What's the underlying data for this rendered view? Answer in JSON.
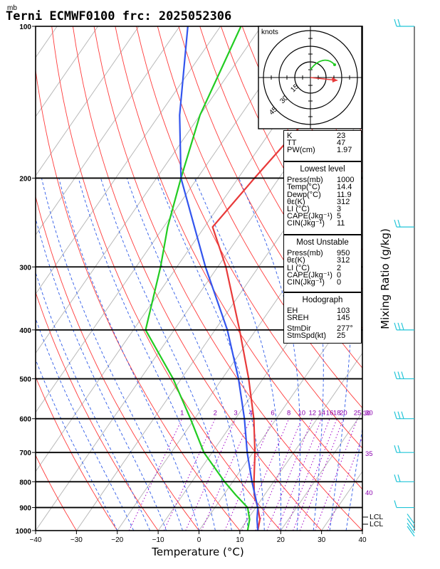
{
  "header": {
    "unit_mb": "mb",
    "title": "Terni ECMWF0100  frc: 2025052306"
  },
  "axes": {
    "xlabel": "Temperature (°C)",
    "right_label": "Mixing Ratio (g/kg)",
    "hodograph_units": "knots"
  },
  "hodograph_ring_labels": [
    "15",
    "30",
    "45"
  ],
  "lcl_labels": [
    "LCL",
    "LCL"
  ],
  "indices": [
    {
      "k": "K",
      "v": "23"
    },
    {
      "k": "TT",
      "v": "47"
    },
    {
      "k": "PW(cm)",
      "v": "1.97"
    }
  ],
  "lowest_level": {
    "title": "Lowest level",
    "rows": [
      {
        "k": "Press(mb)",
        "v": "1000"
      },
      {
        "k": "Temp(°C)",
        "v": "14.4"
      },
      {
        "k": "Dewp(°C)",
        "v": "11.9"
      },
      {
        "k": "θε(K)",
        "v": "312"
      },
      {
        "k": "LI (°C)",
        "v": "3"
      },
      {
        "k": "CAPE(Jkg⁻¹)",
        "v": "5"
      },
      {
        "k": "CIN(Jkg⁻¹)",
        "v": "11"
      }
    ]
  },
  "most_unstable": {
    "title": "Most Unstable",
    "rows": [
      {
        "k": "Press(mb)",
        "v": "950"
      },
      {
        "k": "θε(K)",
        "v": "312"
      },
      {
        "k": "LI (°C)",
        "v": "2"
      },
      {
        "k": "CAPE(Jkg⁻¹)",
        "v": "0"
      },
      {
        "k": "CIN(Jkg⁻¹)",
        "v": "0"
      }
    ]
  },
  "hodograph_box": {
    "title": "Hodograph",
    "rows": [
      {
        "k": "EH",
        "v": "103"
      },
      {
        "k": "SREH",
        "v": "145"
      },
      {
        "k": "StmDir",
        "v": "277°"
      },
      {
        "k": "StmSpd(kt)",
        "v": "25"
      }
    ]
  },
  "chart_data": {
    "type": "line",
    "title": "Terni ECMWF0100  frc: 2025052306",
    "xlabel": "Temperature (°C)",
    "ylabel": "mb",
    "y2label": "Mixing Ratio (g/kg)",
    "y_scale": "log",
    "xlim": [
      -40,
      40
    ],
    "ylim": [
      1000,
      100
    ],
    "x_ticks": [
      -40,
      -30,
      -20,
      -10,
      0,
      10,
      20,
      30,
      40
    ],
    "y_ticks": [
      1000,
      900,
      800,
      700,
      600,
      500,
      400,
      300,
      200,
      100
    ],
    "mixing_ratio_labels": [
      "1",
      "2",
      "3",
      "4",
      "6",
      "8",
      "10",
      "12",
      "14",
      "16",
      "18",
      "20",
      "25",
      "30"
    ],
    "dry_adiabat_labels": [
      "30",
      "35",
      "40"
    ],
    "colors": {
      "temperature": "#e83a3a",
      "dewpoint": "#22cc22",
      "parcel": "#3355ee",
      "wind": "#22c5d8"
    },
    "series": [
      {
        "name": "Temperature",
        "p": [
          1000,
          950,
          900,
          850,
          800,
          700,
          600,
          500,
          400,
          300,
          250,
          200,
          150,
          100
        ],
        "t": [
          14.4,
          13,
          10.5,
          7.5,
          5.2,
          0.5,
          -5.5,
          -13.5,
          -24,
          -38,
          -48,
          -46,
          -43,
          -41
        ]
      },
      {
        "name": "Dewpoint",
        "p": [
          1000,
          950,
          900,
          850,
          800,
          700,
          600,
          500,
          400,
          300,
          250,
          200,
          150,
          100
        ],
        "t": [
          11.9,
          10.5,
          8,
          3,
          -2,
          -12,
          -21,
          -32,
          -47,
          -54,
          -59,
          -64,
          -70,
          -75
        ]
      },
      {
        "name": "Parcel",
        "p": [
          1000,
          950,
          900,
          800,
          700,
          600,
          500,
          400,
          300,
          200,
          150,
          100
        ],
        "t": [
          14.4,
          12.3,
          10.5,
          4.7,
          -1.4,
          -7.8,
          -16,
          -27,
          -43,
          -64,
          -75,
          -88
        ]
      }
    ]
  }
}
